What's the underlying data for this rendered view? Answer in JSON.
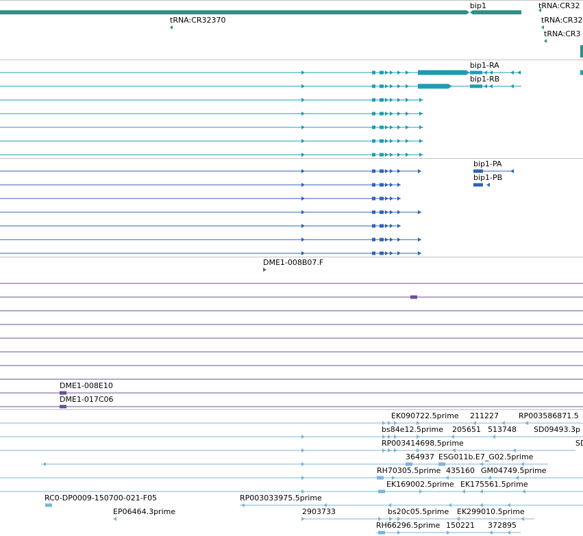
{
  "colors": {
    "gene": "#2f8f8a",
    "transcript": "#1e9cb3",
    "protein": "#2f63b5",
    "clone": "#6b4c9a",
    "est": "#7db4d8",
    "separator": "#c0c0c0",
    "text": "#000000"
  },
  "labels": {
    "gene": [
      {
        "text": "bip1"
      },
      {
        "text": "tRNA:CR32"
      },
      {
        "text": "tRNA:CR32370"
      },
      {
        "text": "tRNA:CR32"
      },
      {
        "text": "tRNA:CR3"
      }
    ],
    "transcript": [
      {
        "text": "bip1-RA"
      },
      {
        "text": "bip1-RB"
      }
    ],
    "protein": [
      {
        "text": "bip1-PA"
      },
      {
        "text": "bip1-PB"
      }
    ],
    "clone": [
      {
        "text": "DME1-008B07.F"
      },
      {
        "text": "DME1-008E10"
      },
      {
        "text": "DME1-017C06"
      }
    ],
    "est": [
      {
        "text": "EK090722.5prime"
      },
      {
        "text": "211227"
      },
      {
        "text": "RP003586871.5"
      },
      {
        "text": "bs84e12.5prime"
      },
      {
        "text": "205651"
      },
      {
        "text": "513748"
      },
      {
        "text": "SD09493.3p"
      },
      {
        "text": "RP003414698.5prime"
      },
      {
        "text": "SD"
      },
      {
        "text": "364937"
      },
      {
        "text": "ESG011b.E7_G02.5prime"
      },
      {
        "text": "RH70305.5prime"
      },
      {
        "text": "435160"
      },
      {
        "text": "GM04749.5prime"
      },
      {
        "text": "EK169002.5prime"
      },
      {
        "text": "EK175561.5prime"
      },
      {
        "text": "RC0-DP0009-150700-021-F05"
      },
      {
        "text": "RP003033975.5prime"
      },
      {
        "text": "EP06464.3prime"
      },
      {
        "text": "2903733"
      },
      {
        "text": "bs20c05.5prime"
      },
      {
        "text": "EK299010.5prime"
      },
      {
        "text": "RH66296.5prime"
      },
      {
        "text": "150221"
      },
      {
        "text": "372895"
      }
    ]
  }
}
